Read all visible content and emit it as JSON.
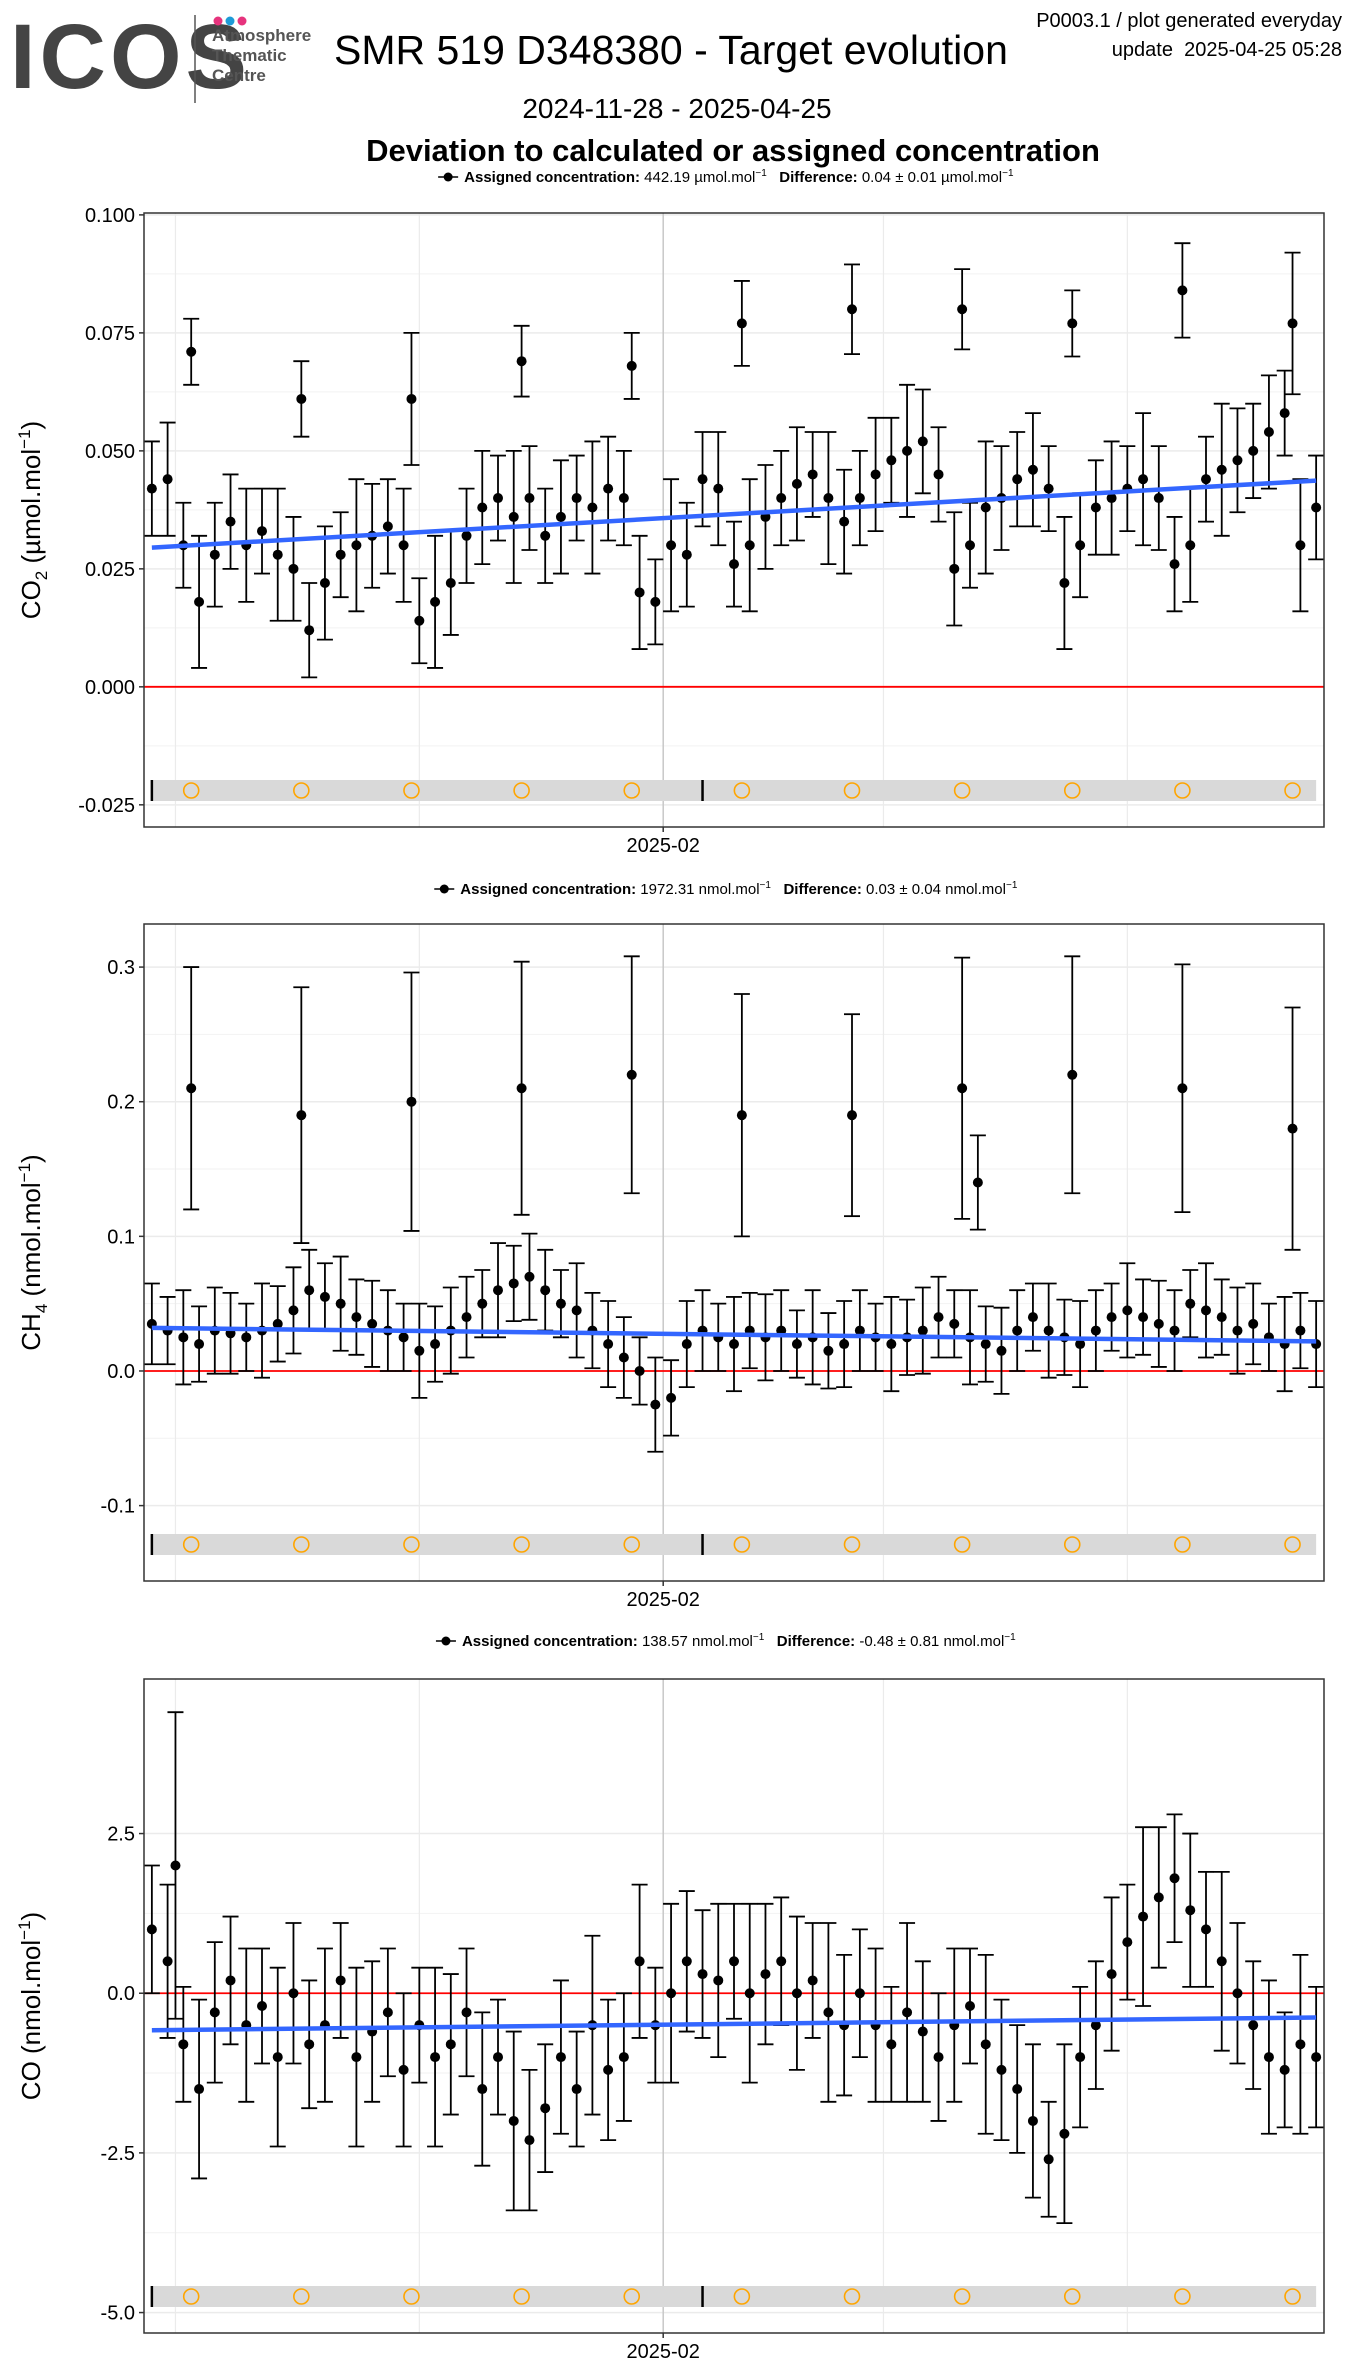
{
  "header": {
    "logo_text": "ICOS",
    "logo_sub": [
      "Atmosphere",
      "Thematic",
      "Centre"
    ],
    "logo_dot_colors": [
      "#e6337d",
      "#1e9bd7",
      "#e6337d"
    ],
    "title": "SMR 519 D348380 - Target evolution",
    "meta_line1": "P0003.1 / plot generated everyday",
    "meta_line2": "update  2025-04-25 05:28",
    "date_range": "2024-11-28 - 2025-04-25",
    "subtitle": "Deviation to calculated or assigned concentration"
  },
  "colors": {
    "points": "#000000",
    "trend": "#3366ff",
    "zero_line": "#ff0000",
    "markers": "#ffa500",
    "band": "#d9d9d9",
    "grid": "#ebebeb"
  },
  "chart_data": [
    {
      "type": "scatter",
      "ylabel_main": "CO",
      "ylabel_sub": "2",
      "ylabel_unit": " (µmol.mol",
      "ylabel_sup": "−1",
      "ylabel_end": ")",
      "legend": {
        "assigned_label": "Assigned concentration:",
        "assigned_value": "442.19 µmol.mol",
        "assigned_sup": "−1",
        "diff_label": "Difference:",
        "diff_value": "0.04 ± 0.01 µmol.mol",
        "diff_sup": "−1"
      },
      "xlim": [
        "2024-11-27",
        "2025-04-26"
      ],
      "ylim": [
        -0.0297,
        0.1004
      ],
      "yticks": [
        0.1,
        0.075,
        0.05,
        0.025,
        0,
        -0.025
      ],
      "ytick_labels": [
        "0.100",
        "0.075",
        "0.050",
        "0.025",
        "0.000",
        "-0.025"
      ],
      "xticks": [
        "2025-02-01"
      ],
      "xtick_labels": [
        "2025-02"
      ],
      "x_minor_grid": [
        "2024-12-01",
        "2025-01-01",
        "2025-03-01",
        "2025-04-01"
      ],
      "x": [
        "2024-11-28",
        "2024-11-30",
        "2024-12-02",
        "2024-12-04",
        "2024-12-06",
        "2024-12-08",
        "2024-12-10",
        "2024-12-12",
        "2024-12-14",
        "2024-12-16",
        "2024-12-18",
        "2024-12-20",
        "2024-12-22",
        "2024-12-24",
        "2024-12-26",
        "2024-12-28",
        "2024-12-30",
        "2025-01-01",
        "2025-01-03",
        "2025-01-05",
        "2025-01-07",
        "2025-01-09",
        "2025-01-11",
        "2025-01-13",
        "2025-01-15",
        "2025-01-17",
        "2025-01-19",
        "2025-01-21",
        "2025-01-23",
        "2025-01-25",
        "2025-01-27",
        "2025-01-29",
        "2025-01-31",
        "2025-02-02",
        "2025-02-04",
        "2025-02-06",
        "2025-02-08",
        "2025-02-10",
        "2025-02-12",
        "2025-02-14",
        "2025-02-16",
        "2025-02-18",
        "2025-02-20",
        "2025-02-22",
        "2025-02-24",
        "2025-02-26",
        "2025-02-28",
        "2025-03-02",
        "2025-03-04",
        "2025-03-06",
        "2025-03-08",
        "2025-03-10",
        "2025-03-12",
        "2025-03-14",
        "2025-03-16",
        "2025-03-18",
        "2025-03-20",
        "2025-03-22",
        "2025-03-24",
        "2025-03-26",
        "2025-03-28",
        "2025-03-30",
        "2025-04-01",
        "2025-04-03",
        "2025-04-05",
        "2025-04-07",
        "2025-04-09",
        "2025-04-11",
        "2025-04-13",
        "2025-04-15",
        "2025-04-17",
        "2025-04-19",
        "2025-04-21",
        "2025-04-23",
        "2025-04-25"
      ],
      "y": [
        0.042,
        0.044,
        0.03,
        0.018,
        0.028,
        0.035,
        0.03,
        0.033,
        0.028,
        0.025,
        0.012,
        0.022,
        0.028,
        0.03,
        0.032,
        0.034,
        0.03,
        0.014,
        0.018,
        0.022,
        0.032,
        0.038,
        0.04,
        0.036,
        0.04,
        0.032,
        0.036,
        0.04,
        0.038,
        0.042,
        0.04,
        0.02,
        0.018,
        0.03,
        0.028,
        0.044,
        0.042,
        0.026,
        0.03,
        0.036,
        0.04,
        0.043,
        0.045,
        0.04,
        0.035,
        0.04,
        0.045,
        0.048,
        0.05,
        0.052,
        0.045,
        0.025,
        0.03,
        0.038,
        0.04,
        0.044,
        0.046,
        0.042,
        0.022,
        0.03,
        0.038,
        0.04,
        0.042,
        0.044,
        0.04,
        0.026,
        0.03,
        0.044,
        0.046,
        0.048,
        0.05,
        0.054,
        0.058,
        0.03,
        0.038
      ],
      "err": [
        0.01,
        0.012,
        0.009,
        0.014,
        0.011,
        0.01,
        0.012,
        0.009,
        0.014,
        0.011,
        0.01,
        0.012,
        0.009,
        0.014,
        0.011,
        0.01,
        0.012,
        0.009,
        0.014,
        0.011,
        0.01,
        0.012,
        0.009,
        0.014,
        0.011,
        0.01,
        0.012,
        0.009,
        0.014,
        0.011,
        0.01,
        0.012,
        0.009,
        0.014,
        0.011,
        0.01,
        0.012,
        0.009,
        0.014,
        0.011,
        0.01,
        0.012,
        0.009,
        0.014,
        0.011,
        0.01,
        0.012,
        0.009,
        0.014,
        0.011,
        0.01,
        0.012,
        0.009,
        0.014,
        0.011,
        0.01,
        0.012,
        0.009,
        0.014,
        0.011,
        0.01,
        0.012,
        0.009,
        0.014,
        0.011,
        0.01,
        0.012,
        0.009,
        0.014,
        0.011,
        0.01,
        0.012,
        0.009,
        0.014,
        0.011
      ],
      "outliers": [
        [
          "2024-12-03",
          0.071,
          0.007
        ],
        [
          "2024-12-17",
          0.061,
          0.008
        ],
        [
          "2024-12-31",
          0.061,
          0.014
        ],
        [
          "2025-01-14",
          0.069,
          0.0075
        ],
        [
          "2025-01-28",
          0.068,
          0.007
        ],
        [
          "2025-02-11",
          0.077,
          0.009
        ],
        [
          "2025-02-25",
          0.08,
          0.0095
        ],
        [
          "2025-03-11",
          0.08,
          0.0085
        ],
        [
          "2025-03-25",
          0.077,
          0.007
        ],
        [
          "2025-04-08",
          0.084,
          0.01
        ],
        [
          "2025-04-22",
          0.077,
          0.015
        ]
      ],
      "trend": {
        "x": [
          "2024-11-28",
          "2025-04-25"
        ],
        "y": [
          0.0295,
          0.0437
        ]
      },
      "zero_line": 0,
      "markers": [
        "2024-12-03",
        "2024-12-17",
        "2024-12-31",
        "2025-01-14",
        "2025-01-28",
        "2025-02-11",
        "2025-02-25",
        "2025-03-11",
        "2025-03-25",
        "2025-04-08",
        "2025-04-22"
      ],
      "band_ticks": [
        "2024-11-28",
        "2025-02-06"
      ]
    },
    {
      "type": "scatter",
      "ylabel_main": "CH",
      "ylabel_sub": "4",
      "ylabel_unit": " (nmol.mol",
      "ylabel_sup": "−1",
      "ylabel_end": ")",
      "legend": {
        "assigned_label": "Assigned concentration:",
        "assigned_value": "1972.31 nmol.mol",
        "assigned_sup": "−1",
        "diff_label": "Difference:",
        "diff_value": "0.03 ± 0.04 nmol.mol",
        "diff_sup": "−1"
      },
      "xlim": [
        "2024-11-27",
        "2025-04-26"
      ],
      "ylim": [
        -0.156,
        0.332
      ],
      "yticks": [
        0.3,
        0.2,
        0.1,
        0,
        -0.1
      ],
      "ytick_labels": [
        "0.3",
        "0.2",
        "0.1",
        "0.0",
        "-0.1"
      ],
      "xticks": [
        "2025-02-01"
      ],
      "xtick_labels": [
        "2025-02"
      ],
      "x_minor_grid": [
        "2024-12-01",
        "2025-01-01",
        "2025-03-01",
        "2025-04-01"
      ],
      "x": [
        "2024-11-28",
        "2024-11-30",
        "2024-12-02",
        "2024-12-04",
        "2024-12-06",
        "2024-12-08",
        "2024-12-10",
        "2024-12-12",
        "2024-12-14",
        "2024-12-16",
        "2024-12-18",
        "2024-12-20",
        "2024-12-22",
        "2024-12-24",
        "2024-12-26",
        "2024-12-28",
        "2024-12-30",
        "2025-01-01",
        "2025-01-03",
        "2025-01-05",
        "2025-01-07",
        "2025-01-09",
        "2025-01-11",
        "2025-01-13",
        "2025-01-15",
        "2025-01-17",
        "2025-01-19",
        "2025-01-21",
        "2025-01-23",
        "2025-01-25",
        "2025-01-27",
        "2025-01-29",
        "2025-01-31",
        "2025-02-02",
        "2025-02-04",
        "2025-02-06",
        "2025-02-08",
        "2025-02-10",
        "2025-02-12",
        "2025-02-14",
        "2025-02-16",
        "2025-02-18",
        "2025-02-20",
        "2025-02-22",
        "2025-02-24",
        "2025-02-26",
        "2025-02-28",
        "2025-03-02",
        "2025-03-04",
        "2025-03-06",
        "2025-03-08",
        "2025-03-10",
        "2025-03-12",
        "2025-03-14",
        "2025-03-16",
        "2025-03-18",
        "2025-03-20",
        "2025-03-22",
        "2025-03-24",
        "2025-03-26",
        "2025-03-28",
        "2025-03-30",
        "2025-04-01",
        "2025-04-03",
        "2025-04-05",
        "2025-04-07",
        "2025-04-09",
        "2025-04-11",
        "2025-04-13",
        "2025-04-15",
        "2025-04-17",
        "2025-04-19",
        "2025-04-21",
        "2025-04-23",
        "2025-04-25"
      ],
      "y": [
        0.035,
        0.03,
        0.025,
        0.02,
        0.03,
        0.028,
        0.025,
        0.03,
        0.035,
        0.045,
        0.06,
        0.055,
        0.05,
        0.04,
        0.035,
        0.03,
        0.025,
        0.015,
        0.02,
        0.03,
        0.04,
        0.05,
        0.06,
        0.065,
        0.07,
        0.06,
        0.05,
        0.045,
        0.03,
        0.02,
        0.01,
        0.0,
        -0.025,
        -0.02,
        0.02,
        0.03,
        0.025,
        0.02,
        0.03,
        0.025,
        0.03,
        0.02,
        0.025,
        0.015,
        0.02,
        0.03,
        0.025,
        0.02,
        0.025,
        0.03,
        0.04,
        0.035,
        0.025,
        0.02,
        0.015,
        0.03,
        0.04,
        0.03,
        0.025,
        0.02,
        0.03,
        0.04,
        0.045,
        0.04,
        0.035,
        0.03,
        0.05,
        0.045,
        0.04,
        0.03,
        0.035,
        0.025,
        0.02,
        0.03,
        0.02
      ],
      "err": [
        0.03,
        0.025,
        0.035,
        0.028,
        0.032,
        0.03,
        0.025,
        0.035,
        0.028,
        0.032,
        0.03,
        0.025,
        0.035,
        0.028,
        0.032,
        0.03,
        0.025,
        0.035,
        0.028,
        0.032,
        0.03,
        0.025,
        0.035,
        0.028,
        0.032,
        0.03,
        0.025,
        0.035,
        0.028,
        0.032,
        0.03,
        0.025,
        0.035,
        0.028,
        0.032,
        0.03,
        0.025,
        0.035,
        0.028,
        0.032,
        0.03,
        0.025,
        0.035,
        0.028,
        0.032,
        0.03,
        0.025,
        0.035,
        0.028,
        0.032,
        0.03,
        0.025,
        0.035,
        0.028,
        0.032,
        0.03,
        0.025,
        0.035,
        0.028,
        0.032,
        0.03,
        0.025,
        0.035,
        0.028,
        0.032,
        0.03,
        0.025,
        0.035,
        0.028,
        0.032,
        0.03,
        0.025,
        0.035,
        0.028,
        0.032
      ],
      "outliers": [
        [
          "2024-12-03",
          0.21,
          0.09
        ],
        [
          "2024-12-17",
          0.19,
          0.095
        ],
        [
          "2024-12-31",
          0.2,
          0.096
        ],
        [
          "2025-01-14",
          0.21,
          0.094
        ],
        [
          "2025-01-28",
          0.22,
          0.088
        ],
        [
          "2025-02-11",
          0.19,
          0.09
        ],
        [
          "2025-02-25",
          0.19,
          0.075
        ],
        [
          "2025-03-11",
          0.21,
          0.097
        ],
        [
          "2025-03-13",
          0.14,
          0.035
        ],
        [
          "2025-03-25",
          0.22,
          0.088
        ],
        [
          "2025-04-08",
          0.21,
          0.092
        ],
        [
          "2025-04-22",
          0.18,
          0.09
        ]
      ],
      "trend": {
        "x": [
          "2024-11-28",
          "2025-04-25"
        ],
        "y": [
          0.032,
          0.022
        ]
      },
      "zero_line": 0,
      "markers": [
        "2024-12-03",
        "2024-12-17",
        "2024-12-31",
        "2025-01-14",
        "2025-01-28",
        "2025-02-11",
        "2025-02-25",
        "2025-03-11",
        "2025-03-25",
        "2025-04-08",
        "2025-04-22"
      ],
      "band_ticks": [
        "2024-11-28",
        "2025-02-06"
      ]
    },
    {
      "type": "scatter",
      "ylabel_main": "CO",
      "ylabel_sub": "",
      "ylabel_unit": " (nmol.mol",
      "ylabel_sup": "−1",
      "ylabel_end": ")",
      "legend": {
        "assigned_label": "Assigned concentration:",
        "assigned_value": "138.57 nmol.mol",
        "assigned_sup": "−1",
        "diff_label": "Difference:",
        "diff_value": "-0.48 ± 0.81 nmol.mol",
        "diff_sup": "−1"
      },
      "xlim": [
        "2024-11-27",
        "2025-04-26"
      ],
      "ylim": [
        -5.32,
        4.92
      ],
      "yticks": [
        2.5,
        0,
        -2.5,
        -5
      ],
      "ytick_labels": [
        "2.5",
        "0.0",
        "-2.5",
        "-5.0"
      ],
      "xticks": [
        "2025-02-01"
      ],
      "xtick_labels": [
        "2025-02"
      ],
      "x_minor_grid": [
        "2024-12-01",
        "2025-01-01",
        "2025-03-01",
        "2025-04-01"
      ],
      "x": [
        "2024-11-28",
        "2024-11-30",
        "2024-12-02",
        "2024-12-04",
        "2024-12-06",
        "2024-12-08",
        "2024-12-10",
        "2024-12-12",
        "2024-12-14",
        "2024-12-16",
        "2024-12-18",
        "2024-12-20",
        "2024-12-22",
        "2024-12-24",
        "2024-12-26",
        "2024-12-28",
        "2024-12-30",
        "2025-01-01",
        "2025-01-03",
        "2025-01-05",
        "2025-01-07",
        "2025-01-09",
        "2025-01-11",
        "2025-01-13",
        "2025-01-15",
        "2025-01-17",
        "2025-01-19",
        "2025-01-21",
        "2025-01-23",
        "2025-01-25",
        "2025-01-27",
        "2025-01-29",
        "2025-01-31",
        "2025-02-02",
        "2025-02-04",
        "2025-02-06",
        "2025-02-08",
        "2025-02-10",
        "2025-02-12",
        "2025-02-14",
        "2025-02-16",
        "2025-02-18",
        "2025-02-20",
        "2025-02-22",
        "2025-02-24",
        "2025-02-26",
        "2025-02-28",
        "2025-03-02",
        "2025-03-04",
        "2025-03-06",
        "2025-03-08",
        "2025-03-10",
        "2025-03-12",
        "2025-03-14",
        "2025-03-16",
        "2025-03-18",
        "2025-03-20",
        "2025-03-22",
        "2025-03-24",
        "2025-03-26",
        "2025-03-28",
        "2025-03-30",
        "2025-04-01",
        "2025-04-03",
        "2025-04-05",
        "2025-04-07",
        "2025-04-09",
        "2025-04-11",
        "2025-04-13",
        "2025-04-15",
        "2025-04-17",
        "2025-04-19",
        "2025-04-21",
        "2025-04-23",
        "2025-04-25"
      ],
      "y": [
        1.0,
        0.5,
        -0.8,
        -1.5,
        -0.3,
        0.2,
        -0.5,
        -0.2,
        -1.0,
        0.0,
        -0.8,
        -0.5,
        0.2,
        -1.0,
        -0.6,
        -0.3,
        -1.2,
        -0.5,
        -1.0,
        -0.8,
        -0.3,
        -1.5,
        -1.0,
        -2.0,
        -2.3,
        -1.8,
        -1.0,
        -1.5,
        -0.5,
        -1.2,
        -1.0,
        0.5,
        -0.5,
        0.0,
        0.5,
        0.3,
        0.2,
        0.5,
        0.0,
        0.3,
        0.5,
        0.0,
        0.2,
        -0.3,
        -0.5,
        0.0,
        -0.5,
        -0.8,
        -0.3,
        -0.6,
        -1.0,
        -0.5,
        -0.2,
        -0.8,
        -1.2,
        -1.5,
        -2.0,
        -2.6,
        -2.2,
        -1.0,
        -0.5,
        0.3,
        0.8,
        1.2,
        1.5,
        1.8,
        1.3,
        1.0,
        0.5,
        0.0,
        -0.5,
        -1.0,
        -1.2,
        -0.8,
        -1.0
      ],
      "err": [
        1.0,
        1.2,
        0.9,
        1.4,
        1.1,
        1.0,
        1.2,
        0.9,
        1.4,
        1.1,
        1.0,
        1.2,
        0.9,
        1.4,
        1.1,
        1.0,
        1.2,
        0.9,
        1.4,
        1.1,
        1.0,
        1.2,
        0.9,
        1.4,
        1.1,
        1.0,
        1.2,
        0.9,
        1.4,
        1.1,
        1.0,
        1.2,
        0.9,
        1.4,
        1.1,
        1.0,
        1.2,
        0.9,
        1.4,
        1.1,
        1.0,
        1.2,
        0.9,
        1.4,
        1.1,
        1.0,
        1.2,
        0.9,
        1.4,
        1.1,
        1.0,
        1.2,
        0.9,
        1.4,
        1.1,
        1.0,
        1.2,
        0.9,
        1.4,
        1.1,
        1.0,
        1.2,
        0.9,
        1.4,
        1.1,
        1.0,
        1.2,
        0.9,
        1.4,
        1.1,
        1.0,
        1.2,
        0.9,
        1.4,
        1.1
      ],
      "outliers": [
        [
          "2024-12-01",
          2.0,
          2.4
        ]
      ],
      "trend": {
        "x": [
          "2024-11-28",
          "2025-04-25"
        ],
        "y": [
          -0.58,
          -0.38
        ]
      },
      "zero_line": 0,
      "markers": [
        "2024-12-03",
        "2024-12-17",
        "2024-12-31",
        "2025-01-14",
        "2025-01-28",
        "2025-02-11",
        "2025-02-25",
        "2025-03-11",
        "2025-03-25",
        "2025-04-08",
        "2025-04-22"
      ],
      "band_ticks": [
        "2024-11-28",
        "2025-02-06"
      ]
    }
  ]
}
